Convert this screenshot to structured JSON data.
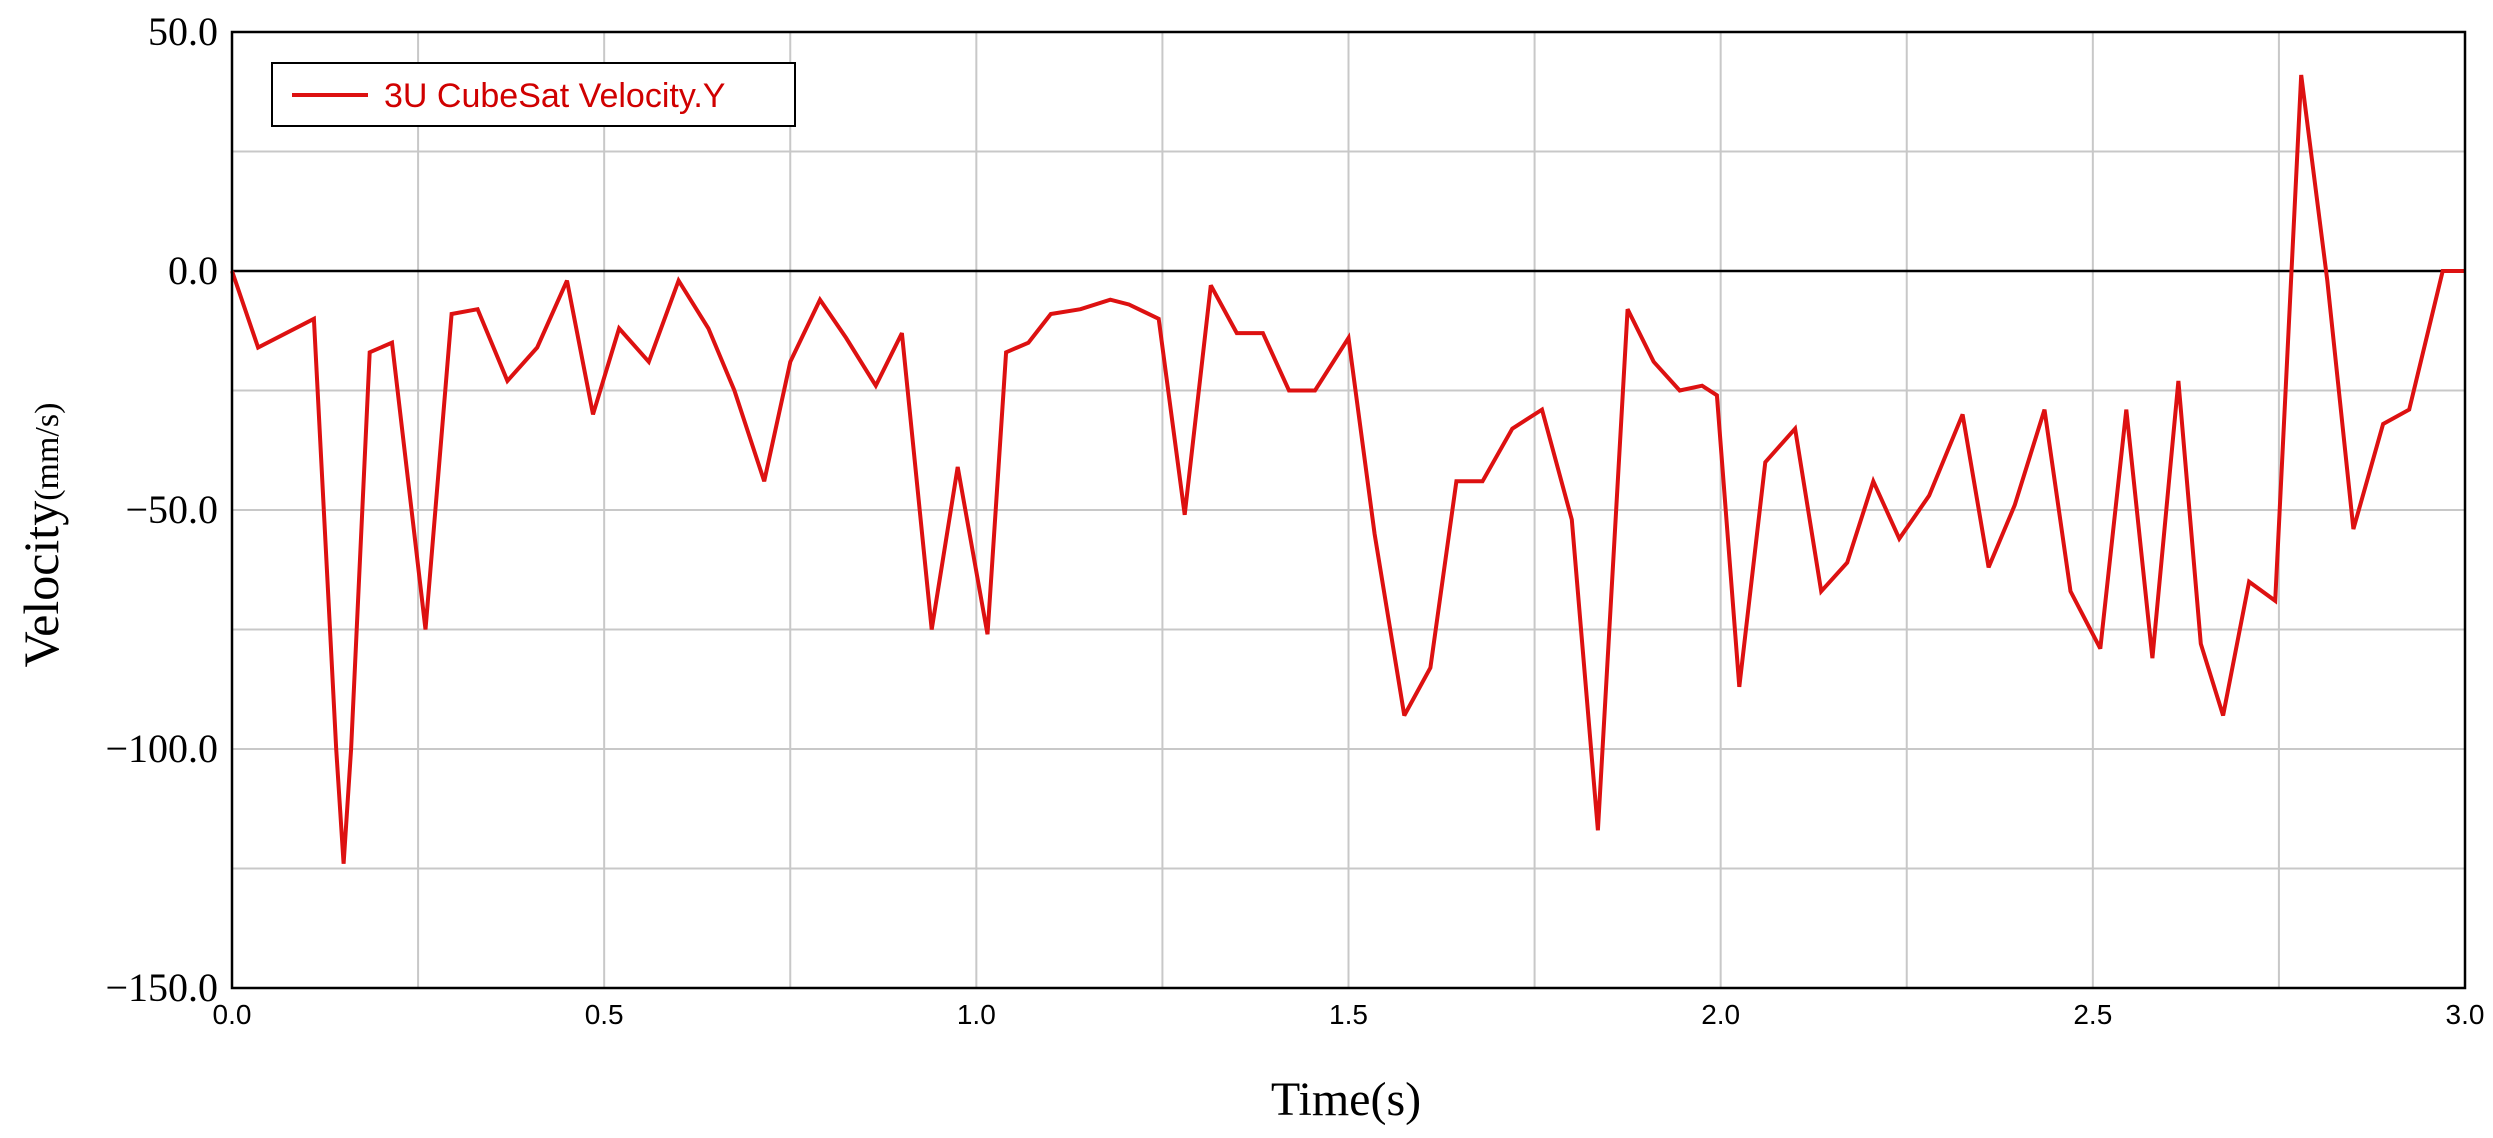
{
  "chart_data": {
    "type": "line",
    "title": "",
    "xlabel": "Time(s)",
    "ylabel_main": "Velocity",
    "ylabel_unit": "(mm/s)",
    "xlim": [
      0,
      3
    ],
    "ylim": [
      -150,
      50
    ],
    "x_ticks": [
      "0.0",
      "0.5",
      "1.0",
      "1.5",
      "2.0",
      "2.5",
      "3.0"
    ],
    "y_ticks": [
      "50.0",
      "0.0",
      "−50.0",
      "−100.0",
      "−150.0"
    ],
    "x_tick_values": [
      0,
      0.5,
      1.0,
      1.5,
      2.0,
      2.5,
      3.0
    ],
    "y_tick_values": [
      50,
      0,
      -50,
      -100,
      -150
    ],
    "grid": true,
    "legend_position": "top-left",
    "series": [
      {
        "name": "3U CubeSat Velocity.Y",
        "color": "#dd1111",
        "x": [
          0,
          0.035,
          0.11,
          0.14,
          0.15,
          0.16,
          0.185,
          0.215,
          0.26,
          0.295,
          0.33,
          0.37,
          0.41,
          0.45,
          0.485,
          0.52,
          0.56,
          0.6,
          0.64,
          0.675,
          0.715,
          0.75,
          0.79,
          0.825,
          0.865,
          0.9,
          0.94,
          0.975,
          1.015,
          1.04,
          1.07,
          1.1,
          1.14,
          1.18,
          1.205,
          1.245,
          1.28,
          1.315,
          1.35,
          1.385,
          1.42,
          1.455,
          1.5,
          1.535,
          1.575,
          1.61,
          1.645,
          1.68,
          1.72,
          1.76,
          1.8,
          1.835,
          1.875,
          1.91,
          1.945,
          1.975,
          1.995,
          2.025,
          2.06,
          2.1,
          2.135,
          2.17,
          2.205,
          2.24,
          2.28,
          2.325,
          2.36,
          2.395,
          2.435,
          2.47,
          2.51,
          2.545,
          2.58,
          2.615,
          2.645,
          2.675,
          2.71,
          2.745,
          2.78,
          2.815,
          2.85,
          2.89,
          2.925,
          2.97,
          3.0
        ],
        "y": [
          0,
          -16,
          -10,
          -100,
          -124,
          -100,
          -17,
          -15,
          -75,
          -9,
          -8,
          -23,
          -16,
          -2,
          -30,
          -12,
          -19,
          -2,
          -12,
          -25,
          -44,
          -19,
          -6,
          -14,
          -24,
          -13,
          -75,
          -41,
          -76,
          -17,
          -15,
          -9,
          -8,
          -6,
          -7,
          -10,
          -51,
          -3,
          -13,
          -13,
          -25,
          -25,
          -14,
          -55,
          -93,
          -83,
          -44,
          -44,
          -33,
          -29,
          -52,
          -117,
          -8,
          -19,
          -25,
          -24,
          -26,
          -87,
          -40,
          -33,
          -67,
          -61,
          -44,
          -56,
          -47,
          -30,
          -62,
          -49,
          -29,
          -67,
          -79,
          -29,
          -81,
          -23,
          -78,
          -93,
          -65,
          -69,
          41,
          -2,
          -54,
          -32,
          -29,
          0,
          0
        ]
      }
    ]
  }
}
